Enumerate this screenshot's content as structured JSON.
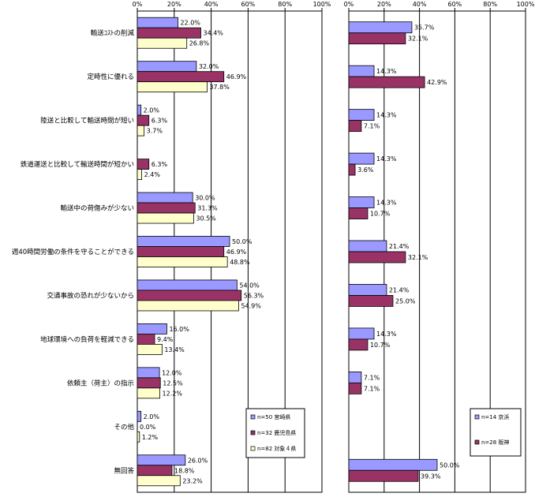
{
  "colors": {
    "series1": "#9999FF",
    "series2": "#993366",
    "series3": "#FFFFCC",
    "border": "#000000"
  },
  "chart_data": [
    {
      "type": "bar",
      "orientation": "horizontal",
      "categories": [
        "輸送ｺｽﾄの削減",
        "定時性に優れる",
        "陸送と比較して輸送時間が短い",
        "鉄道運送と比較して輸送時間が短かい",
        "輸送中の荷傷みが少ない",
        "週40時間労働の条件を守ることができる",
        "交通事故の恐れが少ないから",
        "地球環境への負荷を軽減できる",
        "依頼主（荷主）の指示",
        "その他",
        "無回答"
      ],
      "xlim": [
        0,
        100
      ],
      "x_ticks": [
        "0%",
        "20%",
        "40%",
        "60%",
        "80%",
        "100%"
      ],
      "legend_position": "bottom-right",
      "series": [
        {
          "name": "n=50 宮崎県",
          "values": [
            22.0,
            32.0,
            2.0,
            0.0,
            30.0,
            50.0,
            54.0,
            16.0,
            12.0,
            2.0,
            26.0
          ],
          "labels": [
            "22.0%",
            "32.0%",
            "2.0%",
            "",
            "30.0%",
            "50.0%",
            "54.0%",
            "16.0%",
            "12.0%",
            "2.0%",
            "26.0%"
          ]
        },
        {
          "name": "n=32 鹿児島県",
          "values": [
            34.4,
            46.9,
            6.3,
            6.3,
            31.3,
            46.9,
            56.3,
            9.4,
            12.5,
            0.0,
            18.8
          ],
          "labels": [
            "34.4%",
            "46.9%",
            "6.3%",
            "6.3%",
            "31.3%",
            "46.9%",
            "56.3%",
            "9.4%",
            "12.5%",
            "0.0%",
            "18.8%"
          ]
        },
        {
          "name": "n=82 対象４県",
          "values": [
            26.8,
            37.8,
            3.7,
            2.4,
            30.5,
            48.8,
            54.9,
            13.4,
            12.2,
            1.2,
            23.2
          ],
          "labels": [
            "26.8%",
            "37.8%",
            "3.7%",
            "2.4%",
            "30.5%",
            "48.8%",
            "54.9%",
            "13.4%",
            "12.2%",
            "1.2%",
            "23.2%"
          ]
        }
      ]
    },
    {
      "type": "bar",
      "orientation": "horizontal",
      "categories": [
        "輸送ｺｽﾄの削減",
        "定時性に優れる",
        "陸送と比較して輸送時間が短い",
        "鉄道運送と比較して輸送時間が短かい",
        "輸送中の荷傷みが少ない",
        "週40時間労働の条件を守ることができる",
        "交通事故の恐れが少ないから",
        "地球環境への負荷を軽減できる",
        "依頼主（荷主）の指示",
        "その他",
        "無回答"
      ],
      "xlim": [
        0,
        100
      ],
      "x_ticks": [
        "0%",
        "20%",
        "40%",
        "60%",
        "80%",
        "100%"
      ],
      "legend_position": "right",
      "series": [
        {
          "name": "n=14 京浜",
          "values": [
            35.7,
            14.3,
            14.3,
            14.3,
            14.3,
            21.4,
            21.4,
            14.3,
            7.1,
            0,
            50.0
          ],
          "labels": [
            "35.7%",
            "14.3%",
            "14.3%",
            "14.3%",
            "14.3%",
            "21.4%",
            "21.4%",
            "14.3%",
            "7.1%",
            "",
            "50.0%"
          ]
        },
        {
          "name": "n=28 阪神",
          "values": [
            32.1,
            42.9,
            7.1,
            3.6,
            10.7,
            32.1,
            25.0,
            10.7,
            7.1,
            0,
            39.3
          ],
          "labels": [
            "32.1%",
            "42.9%",
            "7.1%",
            "3.6%",
            "10.7%",
            "32.1%",
            "25.0%",
            "10.7%",
            "7.1%",
            "",
            "39.3%"
          ]
        }
      ]
    }
  ]
}
